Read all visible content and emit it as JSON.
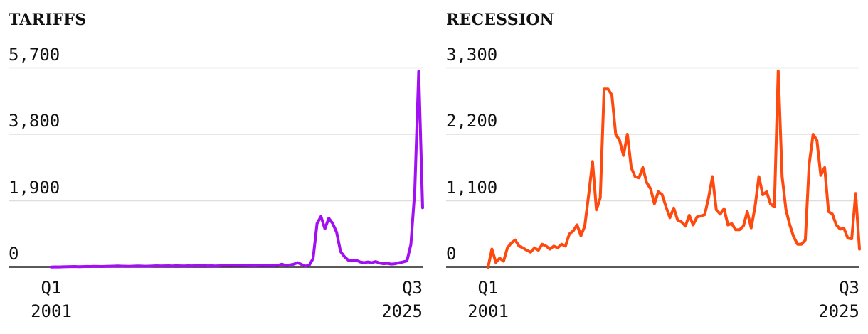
{
  "chart_data": [
    {
      "type": "line",
      "title": "TARIFFS",
      "color": "#a20ff0",
      "ylim": [
        0,
        5700
      ],
      "yticks": [
        0,
        1900,
        3800,
        5700
      ],
      "ytick_labels": [
        "0",
        "1,900",
        "3,800",
        "5,700"
      ],
      "x_start_label": [
        "Q1",
        "2001"
      ],
      "x_end_label": [
        "Q3",
        "2025"
      ],
      "x_range": [
        "Q1 2001",
        "Q3 2025"
      ],
      "grid": true,
      "series": [
        {
          "values": [
            5,
            10,
            8,
            12,
            15,
            18,
            20,
            16,
            18,
            22,
            20,
            25,
            22,
            20,
            25,
            28,
            30,
            35,
            30,
            28,
            25,
            30,
            35,
            32,
            28,
            30,
            35,
            40,
            35,
            38,
            40,
            35,
            42,
            38,
            35,
            40,
            38,
            42,
            40,
            45,
            38,
            40,
            35,
            40,
            55,
            48,
            52,
            45,
            50,
            48,
            45,
            42,
            40,
            45,
            50,
            45,
            48,
            45,
            50,
            90,
            45,
            65,
            85,
            130,
            80,
            30,
            60,
            250,
            1250,
            1450,
            1100,
            1400,
            1250,
            1000,
            450,
            300,
            200,
            180,
            200,
            150,
            130,
            150,
            130,
            160,
            120,
            100,
            110,
            90,
            100,
            130,
            150,
            180,
            650,
            2200,
            5600,
            1700
          ]
        }
      ]
    },
    {
      "type": "line",
      "title": "RECESSION",
      "color": "#fe4a0f",
      "ylim": [
        0,
        3300
      ],
      "yticks": [
        0,
        1100,
        2200,
        3300
      ],
      "ytick_labels": [
        "0",
        "1,100",
        "2,200",
        "3,300"
      ],
      "x_start_label": [
        "Q1",
        "2001"
      ],
      "x_end_label": [
        "Q3",
        "2025"
      ],
      "x_range": [
        "Q1 2001",
        "Q3 2025"
      ],
      "grid": true,
      "series": [
        {
          "values": [
            0,
            300,
            80,
            150,
            100,
            320,
            400,
            450,
            350,
            320,
            280,
            250,
            320,
            280,
            380,
            350,
            300,
            350,
            320,
            380,
            350,
            550,
            600,
            700,
            520,
            680,
            1200,
            1750,
            950,
            1150,
            2950,
            2950,
            2850,
            2200,
            2100,
            1850,
            2200,
            1650,
            1500,
            1480,
            1650,
            1400,
            1300,
            1050,
            1250,
            1200,
            1000,
            820,
            980,
            780,
            750,
            680,
            860,
            700,
            830,
            850,
            870,
            1150,
            1500,
            950,
            880,
            970,
            700,
            720,
            620,
            620,
            680,
            920,
            650,
            1000,
            1500,
            1200,
            1250,
            1050,
            1000,
            3250,
            1500,
            950,
            700,
            500,
            380,
            380,
            450,
            1700,
            2200,
            2100,
            1520,
            1650,
            920,
            880,
            700,
            630,
            640,
            480,
            470,
            1220,
            300
          ]
        }
      ]
    }
  ]
}
